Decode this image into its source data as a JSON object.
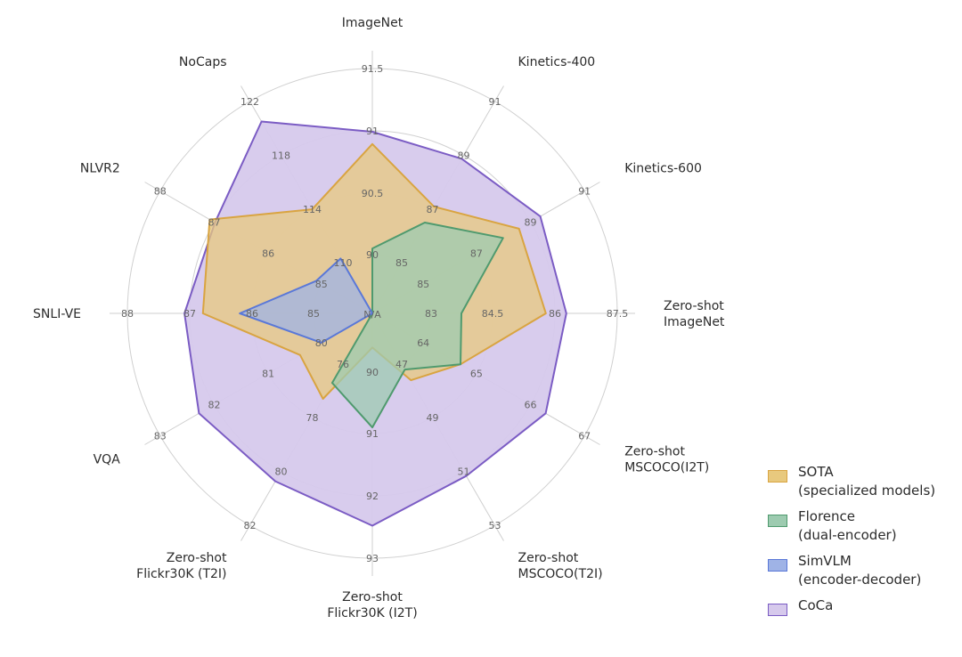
{
  "chart_data": {
    "type": "radar",
    "axes": [
      {
        "name": "ImageNet",
        "label_lines": [
          "ImageNet"
        ],
        "ticks": [
          "90",
          "90.5",
          "91",
          "91.5"
        ]
      },
      {
        "name": "Kinetics-400",
        "label_lines": [
          "Kinetics-400"
        ],
        "ticks": [
          "85",
          "87",
          "89",
          "91"
        ]
      },
      {
        "name": "Kinetics-600",
        "label_lines": [
          "Kinetics-600"
        ],
        "ticks": [
          "85",
          "87",
          "89",
          "91"
        ]
      },
      {
        "name": "Zero-shot ImageNet",
        "label_lines": [
          "Zero-shot",
          "ImageNet"
        ],
        "ticks": [
          "83",
          "84.5",
          "86",
          "87.5"
        ]
      },
      {
        "name": "Zero-shot MSCOCO(I2T)",
        "label_lines": [
          "Zero-shot",
          "MSCOCO(I2T)"
        ],
        "ticks": [
          "64",
          "65",
          "66",
          "67"
        ]
      },
      {
        "name": "Zero-shot MSCOCO(T2I)",
        "label_lines": [
          "Zero-shot",
          "MSCOCO(T2I)"
        ],
        "ticks": [
          "47",
          "49",
          "51",
          "53"
        ]
      },
      {
        "name": "Zero-shot Flickr30K (I2T)",
        "label_lines": [
          "Zero-shot",
          "Flickr30K (I2T)"
        ],
        "ticks": [
          "90",
          "91",
          "92",
          "93"
        ]
      },
      {
        "name": "Zero-shot Flickr30K (T2I)",
        "label_lines": [
          "Zero-shot",
          "Flickr30K (T2I)"
        ],
        "ticks": [
          "76",
          "78",
          "80",
          "82"
        ]
      },
      {
        "name": "VQA",
        "label_lines": [
          "VQA"
        ],
        "ticks": [
          "80",
          "81",
          "82",
          "83"
        ]
      },
      {
        "name": "SNLI-VE",
        "label_lines": [
          "SNLI-VE"
        ],
        "ticks": [
          "85",
          "86",
          "87",
          "88"
        ]
      },
      {
        "name": "NLVR2",
        "label_lines": [
          "NLVR2"
        ],
        "ticks": [
          "85",
          "86",
          "87",
          "88"
        ]
      },
      {
        "name": "NoCaps",
        "label_lines": [
          "NoCaps"
        ],
        "ticks": [
          "110",
          "114",
          "118",
          "122"
        ]
      }
    ],
    "center_label": "N/A",
    "series": [
      {
        "name": "SOTA (specialized models)",
        "legend_lines": [
          "SOTA",
          "(specialized models)"
        ],
        "fill": "#e8c97e",
        "stroke": "#d9a441",
        "values": [
          90.9,
          87.1,
          88.6,
          85.8,
          64.7,
          47.6,
          89.6,
          77.3,
          80.4,
          86.8,
          87.1,
          114.0
        ]
      },
      {
        "name": "Florence (dual-encoder)",
        "legend_lines": [
          "Florence",
          "(dual-encoder)"
        ],
        "fill": "#9dcbb0",
        "stroke": "#4f9a6e",
        "values": [
          90.05,
          86.5,
          88.0,
          83.74,
          64.7,
          47.2,
          90.9,
          76.7,
          null,
          null,
          null,
          null
        ]
      },
      {
        "name": "SimVLM (encoder-decoder)",
        "legend_lines": [
          "SimVLM",
          "(encoder-decoder)"
        ],
        "fill": "#9fb3e6",
        "stroke": "#5a78d8",
        "values": [
          null,
          null,
          null,
          null,
          null,
          null,
          null,
          null,
          80.0,
          86.2,
          85.1,
          110.3
        ]
      },
      {
        "name": "CoCa",
        "legend_lines": [
          "CoCa"
        ],
        "fill": "#d6c9ec",
        "stroke": "#7b5cc4",
        "values": [
          91.0,
          88.9,
          89.4,
          86.3,
          66.3,
          51.2,
          92.5,
          80.4,
          82.3,
          87.1,
          87.0,
          120.6
        ]
      }
    ]
  }
}
